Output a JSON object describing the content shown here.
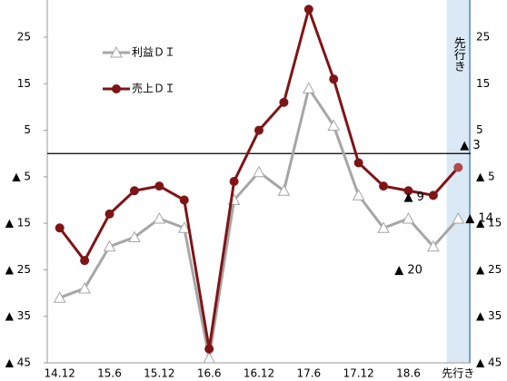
{
  "chart_data": {
    "type": "line",
    "categories": [
      "14.12",
      null,
      "15.6",
      null,
      "15.12",
      null,
      "16.6",
      null,
      "16.12",
      null,
      "17.6",
      null,
      "17.12",
      null,
      "18.6",
      null,
      "先行き"
    ],
    "series": [
      {
        "name": "利益ＤＩ",
        "color": "#a6a6a6",
        "marker": "triangle",
        "values": [
          -31,
          -29,
          -20,
          -18,
          -14,
          -16,
          -44,
          -10,
          -4,
          -8,
          14,
          6,
          -9,
          -16,
          -14,
          -20,
          -14
        ],
        "value_labels": [
          null,
          null,
          null,
          null,
          null,
          null,
          null,
          null,
          null,
          null,
          null,
          null,
          null,
          null,
          null,
          "▲ 20",
          "▲ 14"
        ]
      },
      {
        "name": "売上ＤＩ",
        "color": "#7f1416",
        "marker": "circle",
        "values": [
          -16,
          -23,
          -13,
          -8,
          -7,
          -10,
          -42,
          -6,
          5,
          11,
          31,
          16,
          -2,
          -7,
          -8,
          -9,
          -3
        ],
        "value_labels": [
          null,
          null,
          null,
          null,
          null,
          null,
          null,
          null,
          null,
          null,
          null,
          null,
          null,
          null,
          null,
          "▲ 9",
          "▲ 3"
        ]
      }
    ],
    "ylim": [
      -45,
      33
    ],
    "yticks": [
      25,
      15,
      5,
      {
        "value": -5,
        "label": "▲ 5"
      },
      {
        "value": -15,
        "label": "▲ 15"
      },
      {
        "value": -25,
        "label": "▲ 25"
      },
      {
        "value": -35,
        "label": "▲ 35"
      },
      {
        "value": -45,
        "label": "▲ 45"
      }
    ],
    "zero_line": true,
    "shade_label": "先行き",
    "legend": "upper-left"
  }
}
